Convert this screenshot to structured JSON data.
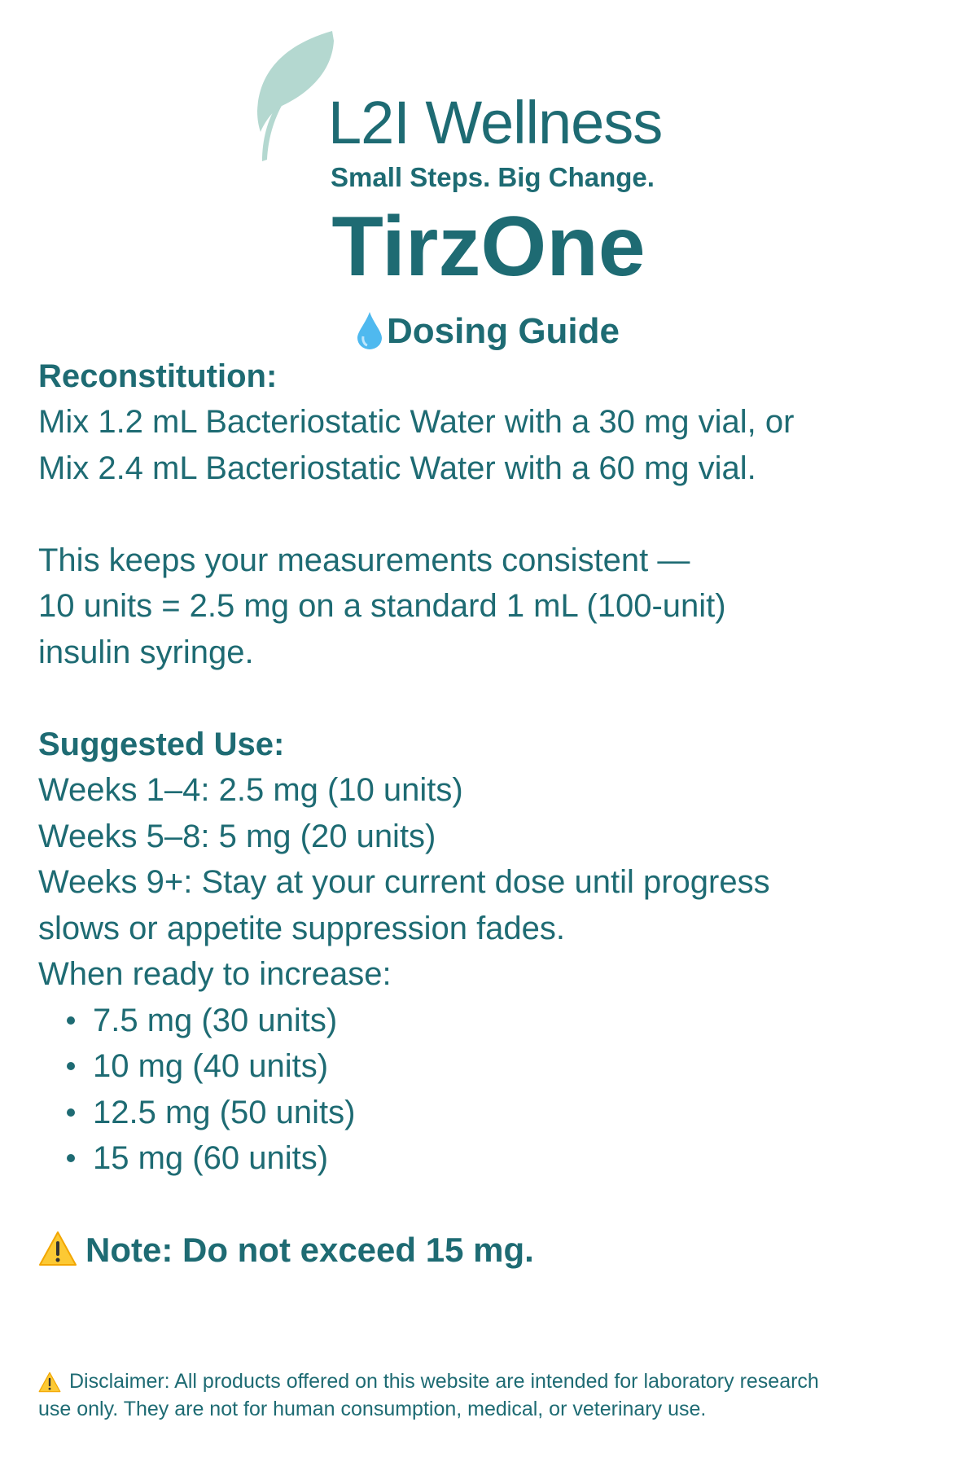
{
  "brand": {
    "name": "L2I Wellness",
    "tagline": "Small Steps. Big Change.",
    "logo_icon": "leaf-icon",
    "leaf_color": "#b4d8d0"
  },
  "product": "TirzOne",
  "guide_title": "Dosing Guide",
  "guide_icon": "droplet-icon",
  "text_color": "#1e6b73",
  "reconstitution": {
    "heading": "Reconstitution:",
    "lines": [
      "Mix 1.2 mL Bacteriostatic Water with a 30 mg vial, or",
      "Mix 2.4 mL Bacteriostatic Water with a 60 mg vial."
    ],
    "note_lines": [
      "This keeps your measurements consistent —",
      "10 units = 2.5 mg on a standard 1 mL (100-unit)",
      "insulin syringe."
    ]
  },
  "suggested_use": {
    "heading": "Suggested Use:",
    "lines": [
      "Weeks 1–4: 2.5 mg (10 units)",
      "Weeks 5–8: 5 mg (20 units)",
      "Weeks 9+: Stay at your current dose until progress",
      "slows or appetite suppression fades.",
      "When ready to increase:"
    ],
    "increase_steps": [
      "7.5 mg (30 units)",
      "10 mg (40 units)",
      "12.5 mg (50 units)",
      "15 mg (60 units)"
    ]
  },
  "note": "Note: Do not exceed 15 mg.",
  "disclaimer": [
    "Disclaimer: All products offered on this website are intended for laboratory research",
    "use only. They are not for human consumption, medical, or veterinary use."
  ]
}
